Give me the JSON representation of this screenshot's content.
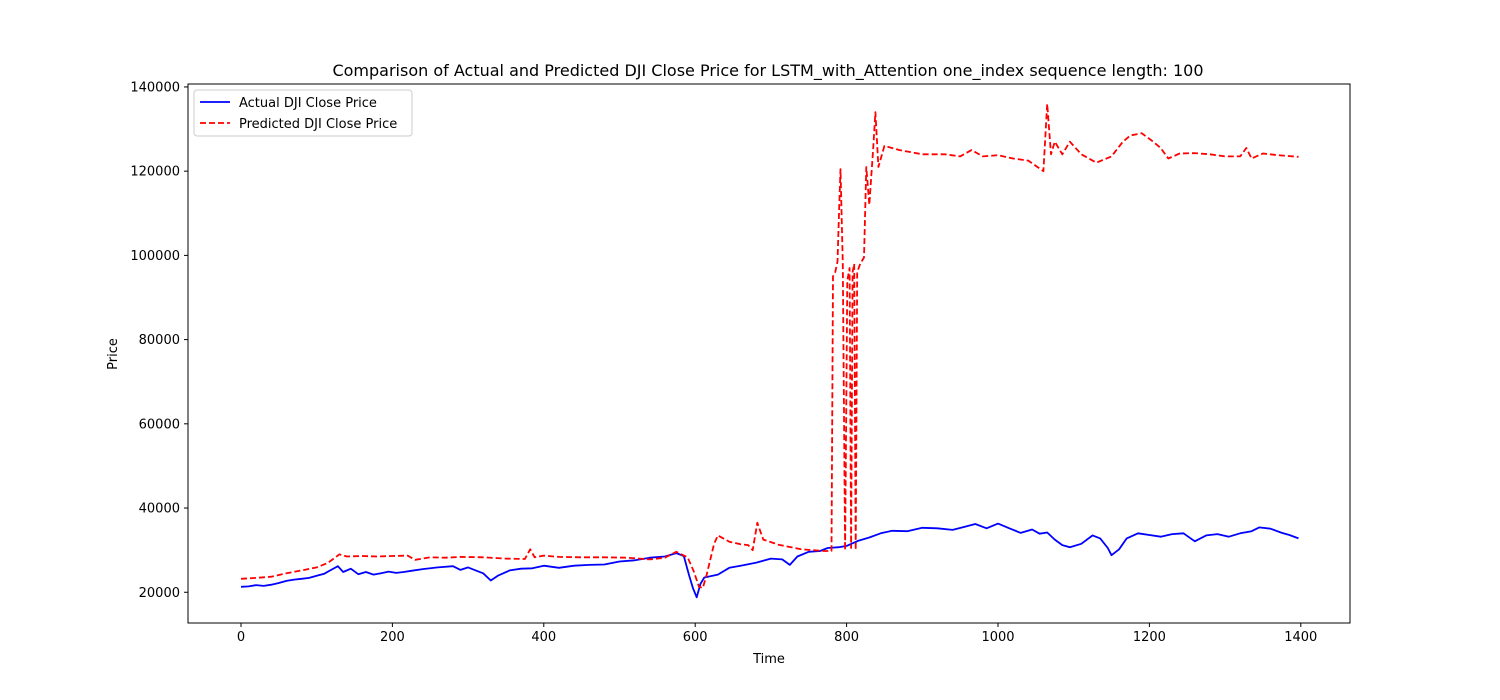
{
  "chart_data": {
    "type": "line",
    "title": "Comparison of Actual and Predicted DJI Close Price for LSTM_with_Attention one_index sequence length: 100",
    "xlabel": "Time",
    "ylabel": "Price",
    "xlim": [
      -70,
      1465
    ],
    "ylim": [
      12700,
      140700
    ],
    "xticks": [
      0,
      200,
      400,
      600,
      800,
      1000,
      1200,
      1400
    ],
    "yticks": [
      20000,
      40000,
      60000,
      80000,
      100000,
      120000,
      140000
    ],
    "grid": false,
    "legend_position": "top-left",
    "series": [
      {
        "name": "Actual DJI Close Price",
        "color": "#0000ff",
        "style": "solid",
        "points": [
          [
            0,
            21300
          ],
          [
            10,
            21400
          ],
          [
            20,
            21700
          ],
          [
            30,
            21500
          ],
          [
            40,
            21800
          ],
          [
            50,
            22200
          ],
          [
            60,
            22700
          ],
          [
            70,
            23000
          ],
          [
            80,
            23200
          ],
          [
            90,
            23400
          ],
          [
            100,
            23900
          ],
          [
            110,
            24400
          ],
          [
            120,
            25400
          ],
          [
            128,
            26200
          ],
          [
            135,
            24800
          ],
          [
            145,
            25600
          ],
          [
            155,
            24300
          ],
          [
            165,
            24800
          ],
          [
            175,
            24200
          ],
          [
            185,
            24500
          ],
          [
            195,
            24900
          ],
          [
            205,
            24600
          ],
          [
            215,
            24800
          ],
          [
            225,
            25100
          ],
          [
            240,
            25500
          ],
          [
            260,
            25900
          ],
          [
            280,
            26200
          ],
          [
            290,
            25300
          ],
          [
            300,
            25900
          ],
          [
            310,
            25200
          ],
          [
            320,
            24500
          ],
          [
            330,
            22800
          ],
          [
            340,
            24000
          ],
          [
            355,
            25200
          ],
          [
            370,
            25600
          ],
          [
            385,
            25700
          ],
          [
            400,
            26300
          ],
          [
            420,
            25800
          ],
          [
            440,
            26300
          ],
          [
            460,
            26500
          ],
          [
            480,
            26600
          ],
          [
            500,
            27300
          ],
          [
            520,
            27600
          ],
          [
            540,
            28200
          ],
          [
            560,
            28500
          ],
          [
            575,
            29300
          ],
          [
            585,
            28600
          ],
          [
            592,
            24000
          ],
          [
            597,
            21000
          ],
          [
            602,
            18800
          ],
          [
            607,
            22000
          ],
          [
            612,
            23500
          ],
          [
            620,
            23800
          ],
          [
            630,
            24200
          ],
          [
            645,
            25800
          ],
          [
            660,
            26300
          ],
          [
            680,
            27000
          ],
          [
            700,
            28000
          ],
          [
            715,
            27800
          ],
          [
            725,
            26500
          ],
          [
            735,
            28500
          ],
          [
            750,
            29600
          ],
          [
            765,
            29800
          ],
          [
            775,
            30500
          ],
          [
            790,
            30700
          ],
          [
            800,
            31000
          ],
          [
            815,
            32200
          ],
          [
            830,
            33000
          ],
          [
            845,
            34000
          ],
          [
            860,
            34600
          ],
          [
            880,
            34500
          ],
          [
            900,
            35300
          ],
          [
            920,
            35200
          ],
          [
            940,
            34800
          ],
          [
            955,
            35500
          ],
          [
            970,
            36200
          ],
          [
            985,
            35200
          ],
          [
            1000,
            36300
          ],
          [
            1015,
            35200
          ],
          [
            1030,
            34100
          ],
          [
            1045,
            34900
          ],
          [
            1055,
            33900
          ],
          [
            1065,
            34200
          ],
          [
            1075,
            32500
          ],
          [
            1085,
            31200
          ],
          [
            1095,
            30700
          ],
          [
            1110,
            31500
          ],
          [
            1125,
            33500
          ],
          [
            1135,
            32800
          ],
          [
            1145,
            30500
          ],
          [
            1150,
            28800
          ],
          [
            1160,
            30200
          ],
          [
            1170,
            32800
          ],
          [
            1185,
            34000
          ],
          [
            1200,
            33600
          ],
          [
            1215,
            33200
          ],
          [
            1230,
            33800
          ],
          [
            1245,
            34000
          ],
          [
            1260,
            32100
          ],
          [
            1275,
            33500
          ],
          [
            1290,
            33800
          ],
          [
            1305,
            33200
          ],
          [
            1320,
            34000
          ],
          [
            1335,
            34500
          ],
          [
            1345,
            35400
          ],
          [
            1360,
            35100
          ],
          [
            1375,
            34100
          ],
          [
            1385,
            33600
          ],
          [
            1397,
            32800
          ]
        ]
      },
      {
        "name": "Predicted DJI Close Price",
        "color": "#ff0000",
        "style": "dashed",
        "points": [
          [
            0,
            23200
          ],
          [
            20,
            23400
          ],
          [
            40,
            23700
          ],
          [
            60,
            24500
          ],
          [
            80,
            25200
          ],
          [
            100,
            25900
          ],
          [
            115,
            27000
          ],
          [
            130,
            29000
          ],
          [
            140,
            28500
          ],
          [
            160,
            28600
          ],
          [
            180,
            28500
          ],
          [
            200,
            28600
          ],
          [
            220,
            28700
          ],
          [
            230,
            27700
          ],
          [
            250,
            28300
          ],
          [
            270,
            28200
          ],
          [
            290,
            28400
          ],
          [
            320,
            28300
          ],
          [
            350,
            28000
          ],
          [
            375,
            27900
          ],
          [
            382,
            30200
          ],
          [
            388,
            28300
          ],
          [
            400,
            28700
          ],
          [
            420,
            28400
          ],
          [
            450,
            28300
          ],
          [
            480,
            28300
          ],
          [
            510,
            28200
          ],
          [
            540,
            27800
          ],
          [
            560,
            28200
          ],
          [
            575,
            29600
          ],
          [
            590,
            28300
          ],
          [
            598,
            25000
          ],
          [
            605,
            21300
          ],
          [
            610,
            21000
          ],
          [
            615,
            24000
          ],
          [
            625,
            31500
          ],
          [
            630,
            33500
          ],
          [
            645,
            32000
          ],
          [
            660,
            31400
          ],
          [
            670,
            31200
          ],
          [
            676,
            30000
          ],
          [
            682,
            36500
          ],
          [
            690,
            32500
          ],
          [
            710,
            31300
          ],
          [
            740,
            30200
          ],
          [
            770,
            29800
          ],
          [
            780,
            29800
          ],
          [
            782,
            95000
          ],
          [
            785,
            96000
          ],
          [
            788,
            98500
          ],
          [
            790,
            110000
          ],
          [
            792,
            120500
          ],
          [
            795,
            98000
          ],
          [
            798,
            30000
          ],
          [
            801,
            94000
          ],
          [
            804,
            97000
          ],
          [
            806,
            30500
          ],
          [
            808,
            96000
          ],
          [
            810,
            98000
          ],
          [
            812,
            30000
          ],
          [
            814,
            96000
          ],
          [
            818,
            98000
          ],
          [
            823,
            99500
          ],
          [
            826,
            121000
          ],
          [
            830,
            112000
          ],
          [
            835,
            125000
          ],
          [
            838,
            134000
          ],
          [
            842,
            121000
          ],
          [
            850,
            126000
          ],
          [
            870,
            125000
          ],
          [
            900,
            124000
          ],
          [
            930,
            124000
          ],
          [
            950,
            123500
          ],
          [
            965,
            125000
          ],
          [
            980,
            123500
          ],
          [
            1000,
            123800
          ],
          [
            1020,
            123000
          ],
          [
            1040,
            122500
          ],
          [
            1060,
            120000
          ],
          [
            1065,
            136000
          ],
          [
            1070,
            124000
          ],
          [
            1075,
            127000
          ],
          [
            1085,
            124000
          ],
          [
            1095,
            127000
          ],
          [
            1110,
            124000
          ],
          [
            1130,
            122000
          ],
          [
            1150,
            123500
          ],
          [
            1165,
            127000
          ],
          [
            1175,
            128500
          ],
          [
            1190,
            129000
          ],
          [
            1205,
            127000
          ],
          [
            1215,
            125500
          ],
          [
            1225,
            123000
          ],
          [
            1240,
            124200
          ],
          [
            1260,
            124300
          ],
          [
            1280,
            124000
          ],
          [
            1300,
            123500
          ],
          [
            1320,
            123500
          ],
          [
            1328,
            125500
          ],
          [
            1335,
            123000
          ],
          [
            1350,
            124200
          ],
          [
            1370,
            123800
          ],
          [
            1397,
            123400
          ]
        ]
      }
    ]
  }
}
